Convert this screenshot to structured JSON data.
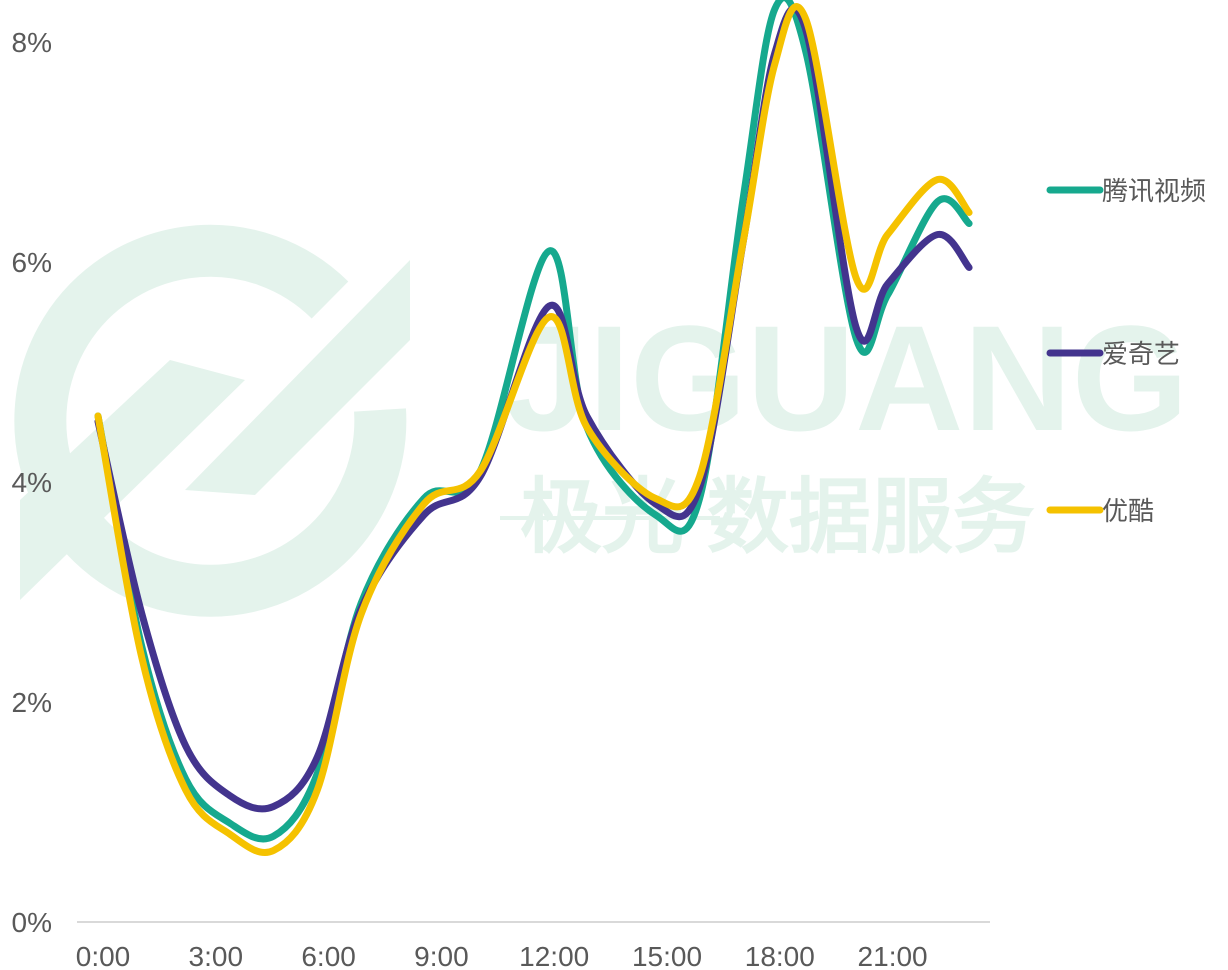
{
  "watermark": {
    "brand": "JIGUANG",
    "tagline": "极光 数据服务",
    "color": "#e4f3ec"
  },
  "chart_data": {
    "type": "line",
    "categories": [
      "0:00",
      "1:00",
      "2:00",
      "3:00",
      "4:00",
      "5:00",
      "6:00",
      "7:00",
      "8:00",
      "9:00",
      "10:00",
      "11:00",
      "12:00",
      "13:00",
      "14:00",
      "15:00",
      "16:00",
      "17:00",
      "18:00",
      "19:00",
      "20:00",
      "21:00",
      "22:00",
      "23:00"
    ],
    "x_tick_labels": [
      "0:00",
      "3:00",
      "6:00",
      "9:00",
      "12:00",
      "15:00",
      "18:00",
      "21:00"
    ],
    "y_tick_labels": [
      "0%",
      "2%",
      "4%",
      "6%",
      "8%"
    ],
    "y_ticks": [
      0,
      2,
      4,
      6,
      8
    ],
    "ylim": [
      0,
      8
    ],
    "unit": "%",
    "grid": false,
    "legend_position": "right",
    "series": [
      {
        "name": "腾讯视频",
        "color": "#16a98e",
        "values": [
          4.6,
          2.5,
          1.3,
          0.9,
          0.78,
          1.35,
          2.9,
          3.85,
          4.1,
          6.1,
          4.5,
          3.7,
          3.85,
          6.6,
          8.3,
          7.9,
          5.3,
          5.7,
          6.55,
          6.35
        ]
      },
      {
        "name": "爱奇艺",
        "color": "#43348e",
        "values": [
          4.55,
          2.8,
          1.6,
          1.15,
          1.05,
          1.5,
          2.85,
          3.7,
          4.05,
          5.6,
          4.6,
          3.8,
          3.95,
          6.2,
          7.9,
          8.1,
          5.4,
          5.8,
          6.25,
          5.95
        ]
      },
      {
        "name": "优酷",
        "color": "#f5c200",
        "values": [
          4.6,
          2.4,
          1.2,
          0.8,
          0.65,
          1.2,
          2.8,
          3.8,
          4.1,
          5.5,
          4.5,
          3.85,
          4.05,
          6.2,
          7.8,
          8.2,
          5.85,
          6.25,
          6.75,
          6.45
        ]
      }
    ],
    "x_values": [
      "0:00",
      "1:10",
      "2:20",
      "3:30",
      "4:40",
      "5:50",
      "7:00",
      "8:40",
      "10:10",
      "12:00",
      "13:00",
      "14:50",
      "16:00",
      "17:10",
      "18:00",
      "18:50",
      "20:10",
      "21:00",
      "22:20",
      "23:10"
    ]
  }
}
